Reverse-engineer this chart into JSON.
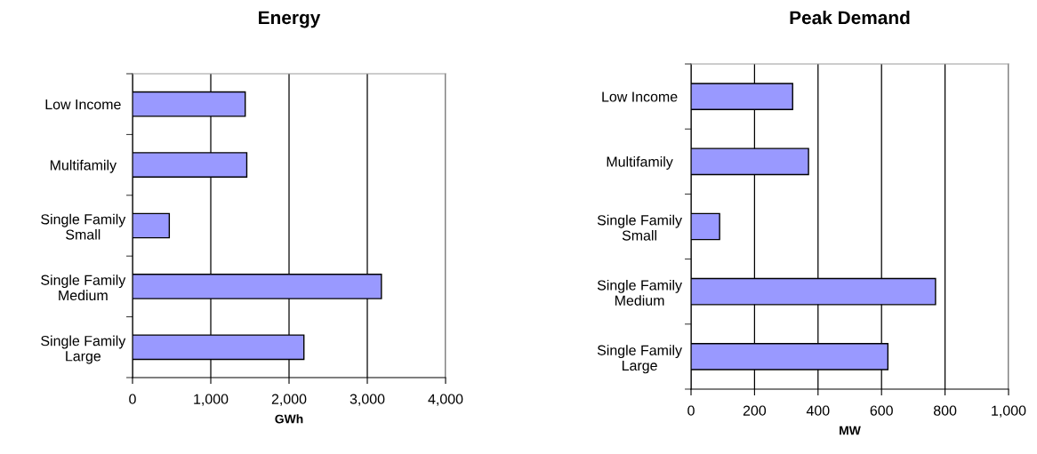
{
  "chart_data": [
    {
      "type": "bar",
      "orientation": "horizontal",
      "title": "Energy",
      "xlabel": "GWh",
      "categories": [
        "Low Income",
        "Multifamily",
        "Single Family\nSmall",
        "Single Family\nMedium",
        "Single Family\nLarge"
      ],
      "values": [
        1440,
        1460,
        470,
        3180,
        2190
      ],
      "color": "#9999ff",
      "xlim": [
        0,
        4000
      ],
      "xticks": [
        {
          "value": 0,
          "label": "0"
        },
        {
          "value": 1000,
          "label": "1,000"
        },
        {
          "value": 2000,
          "label": "2,000"
        },
        {
          "value": 3000,
          "label": "3,000"
        },
        {
          "value": 4000,
          "label": "4,000"
        }
      ],
      "grid": "x",
      "legend": false
    },
    {
      "type": "bar",
      "orientation": "horizontal",
      "title": "Peak Demand",
      "xlabel": "MW",
      "categories": [
        "Low Income",
        "Multifamily",
        "Single Family\nSmall",
        "Single Family\nMedium",
        "Single Family\nLarge"
      ],
      "values": [
        320,
        370,
        90,
        770,
        620
      ],
      "color": "#9999ff",
      "xlim": [
        0,
        1000
      ],
      "xticks": [
        0,
        200,
        400,
        600,
        800,
        {
          "value": 1000,
          "label": "1,000"
        }
      ],
      "grid": "x",
      "legend": false
    }
  ]
}
